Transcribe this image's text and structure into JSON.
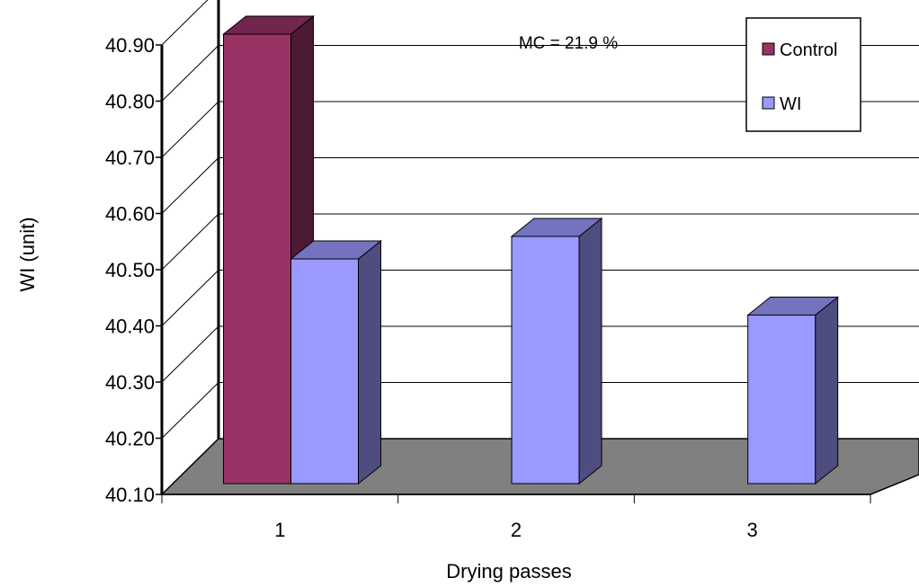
{
  "chart_data": {
    "type": "bar",
    "title": "",
    "xlabel": "Drying passes",
    "ylabel": "WI (unit)",
    "annotation": "MC = 21.9 %",
    "categories": [
      "1",
      "2",
      "3"
    ],
    "ylim": [
      40.1,
      40.9
    ],
    "yticks": [
      "40.10",
      "40.20",
      "40.30",
      "40.40",
      "40.50",
      "40.60",
      "40.70",
      "40.80",
      "40.90"
    ],
    "legend_position": "top-right",
    "series": [
      {
        "name": "Control",
        "color": "#993366",
        "values": [
          40.9,
          null,
          null
        ]
      },
      {
        "name": "WI",
        "color": "#9999ff",
        "values": [
          40.5,
          40.54,
          40.4
        ]
      }
    ],
    "grid": true,
    "style": "3d-clustered-column"
  }
}
